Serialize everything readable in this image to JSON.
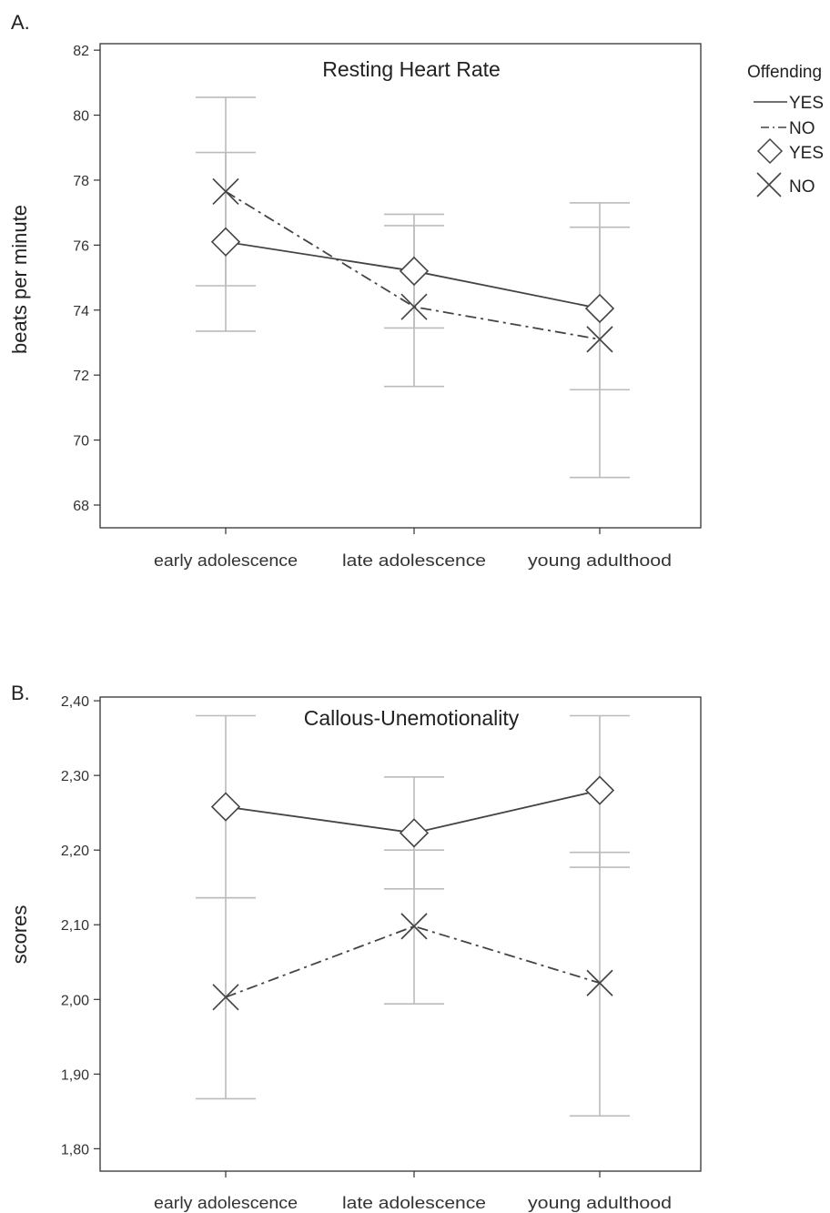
{
  "legend": {
    "title": "Offending",
    "line_yes": "YES",
    "line_no": "NO",
    "marker_yes": "YES",
    "marker_no": "NO"
  },
  "colors": {
    "axis": "#333333",
    "series_line": "#444444",
    "error_bar": "#bbbbbb",
    "marker": "#444444"
  },
  "chart_data": [
    {
      "panel_label": "A.",
      "type": "line",
      "title": "Resting Heart Rate",
      "xlabel": "",
      "ylabel": "beats per minute",
      "categories": [
        "early adolescence",
        "late adolescence",
        "young adulthood"
      ],
      "ylim": [
        67.3,
        82.2
      ],
      "yticks": [
        68,
        70,
        72,
        74,
        76,
        78,
        80,
        82
      ],
      "ytick_labels": [
        "68",
        "70",
        "72",
        "74",
        "76",
        "78",
        "80",
        "82"
      ],
      "series": [
        {
          "name": "YES",
          "line": "solid",
          "marker": "diamond",
          "values": [
            76.1,
            75.2,
            74.05
          ],
          "ci_low": [
            73.35,
            73.45,
            71.55
          ],
          "ci_high": [
            78.85,
            76.95,
            76.55
          ]
        },
        {
          "name": "NO",
          "line": "dashdot",
          "marker": "x",
          "values": [
            77.65,
            74.1,
            73.1
          ],
          "ci_low": [
            74.75,
            71.65,
            68.85
          ],
          "ci_high": [
            80.55,
            76.6,
            77.3
          ]
        }
      ],
      "grid": false,
      "legend_position": "right"
    },
    {
      "panel_label": "B.",
      "type": "line",
      "title": "Callous-Unemotionality",
      "xlabel": "",
      "ylabel": "scores",
      "categories": [
        "early adolescence",
        "late adolescence",
        "young adulthood"
      ],
      "ylim": [
        1.77,
        2.405
      ],
      "yticks": [
        1.8,
        1.9,
        2.0,
        2.1,
        2.2,
        2.3,
        2.4
      ],
      "ytick_labels": [
        "1,80",
        "1,90",
        "2,00",
        "2,10",
        "2,20",
        "2,30",
        "2,40"
      ],
      "series": [
        {
          "name": "YES",
          "line": "solid",
          "marker": "diamond",
          "values": [
            2.258,
            2.223,
            2.28
          ],
          "ci_low": [
            2.136,
            2.148,
            2.177
          ],
          "ci_high": [
            2.38,
            2.298,
            2.38
          ]
        },
        {
          "name": "NO",
          "line": "dashdot",
          "marker": "x",
          "values": [
            2.003,
            2.098,
            2.022
          ],
          "ci_low": [
            1.867,
            1.994,
            1.844
          ],
          "ci_high": [
            2.136,
            2.2,
            2.197
          ]
        }
      ],
      "grid": false,
      "legend_position": "none"
    }
  ]
}
